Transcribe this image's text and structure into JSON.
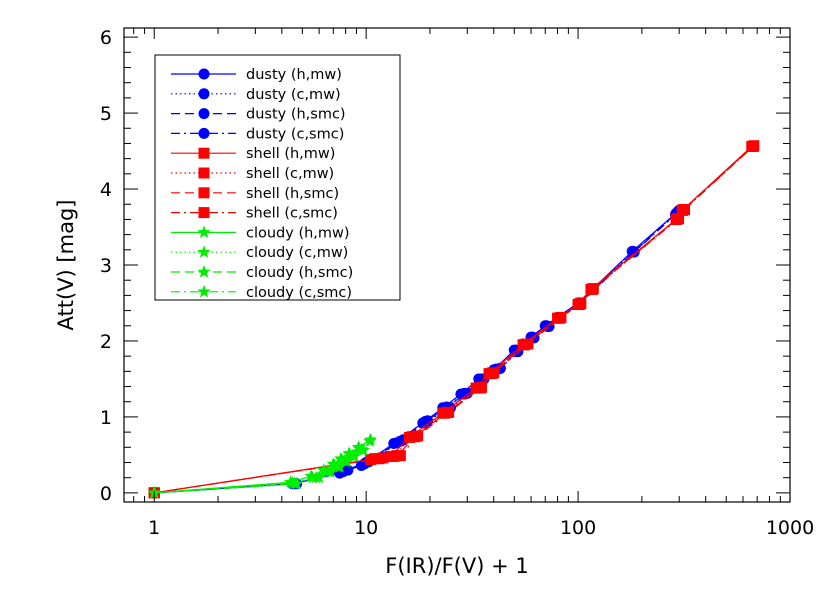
{
  "chart_data": {
    "type": "line",
    "title": "",
    "xlabel": "F(IR)/F(V) + 1",
    "ylabel": "Att(V) [mag]",
    "xscale": "log",
    "xlim": [
      0.72,
      1000
    ],
    "ylim": [
      -0.12,
      6.12
    ],
    "x_ticks": [
      1,
      10,
      100,
      1000
    ],
    "x_tick_labels": [
      "1",
      "10",
      "100",
      "1000"
    ],
    "y_ticks": [
      0,
      1,
      2,
      3,
      4,
      5,
      6
    ],
    "y_tick_labels": [
      "0",
      "1",
      "2",
      "3",
      "4",
      "5",
      "6"
    ],
    "grid": false,
    "legend_position": "top-left",
    "colors": {
      "dusty": "#0000ff",
      "shell": "#ff0000",
      "cloudy": "#00ee00"
    },
    "series": [
      {
        "name": "dusty (h,mw)",
        "group": "dusty",
        "marker": "circle",
        "dash": "solid",
        "x": [
          1,
          4.5,
          7.5,
          9.5,
          13.5,
          18.5,
          23,
          28,
          34,
          40,
          50,
          60,
          70,
          100,
          180,
          300
        ],
        "y": [
          0,
          0.12,
          0.26,
          0.36,
          0.65,
          0.92,
          1.12,
          1.3,
          1.5,
          1.62,
          1.88,
          2.05,
          2.2,
          2.5,
          3.18,
          3.72
        ]
      },
      {
        "name": "dusty (c,mw)",
        "group": "dusty",
        "marker": "circle",
        "dash": "dotted",
        "x": [
          1,
          4.5,
          7.8,
          9.8,
          14,
          19,
          24,
          29,
          35,
          41,
          51,
          61,
          71,
          101,
          182,
          290
        ],
        "y": [
          0,
          0.12,
          0.28,
          0.38,
          0.66,
          0.93,
          1.13,
          1.31,
          1.5,
          1.63,
          1.88,
          2.05,
          2.2,
          2.5,
          3.18,
          3.68
        ]
      },
      {
        "name": "dusty (h,smc)",
        "group": "dusty",
        "marker": "circle",
        "dash": "dashed",
        "x": [
          1,
          4.6,
          8,
          10,
          14.5,
          19,
          24,
          29,
          35,
          42,
          51,
          61,
          72,
          102,
          183,
          295
        ],
        "y": [
          0,
          0.12,
          0.3,
          0.4,
          0.68,
          0.94,
          1.12,
          1.3,
          1.49,
          1.63,
          1.86,
          2.04,
          2.19,
          2.5,
          3.17,
          3.7
        ]
      },
      {
        "name": "dusty (c,smc)",
        "group": "dusty",
        "marker": "circle",
        "dash": "dashdot",
        "x": [
          1,
          4.7,
          8.2,
          10.3,
          15,
          19.5,
          25,
          30,
          36,
          43,
          52,
          62,
          73,
          103,
          184,
          288
        ],
        "y": [
          0,
          0.12,
          0.3,
          0.41,
          0.7,
          0.95,
          1.12,
          1.31,
          1.5,
          1.64,
          1.86,
          2.04,
          2.19,
          2.5,
          3.17,
          3.66
        ]
      },
      {
        "name": "shell (h,mw)",
        "group": "shell",
        "marker": "square",
        "dash": "solid",
        "x": [
          1,
          10.5,
          13,
          16,
          23,
          33,
          38,
          55,
          80,
          100,
          115,
          290,
          310,
          660
        ],
        "y": [
          0,
          0.44,
          0.48,
          0.73,
          1.05,
          1.38,
          1.57,
          1.95,
          2.3,
          2.48,
          2.68,
          3.6,
          3.72,
          4.56
        ]
      },
      {
        "name": "shell (c,mw)",
        "group": "shell",
        "marker": "square",
        "dash": "dotted",
        "x": [
          1,
          11,
          13.5,
          16.5,
          23.5,
          34,
          39,
          56,
          81,
          101,
          116,
          292,
          312,
          665
        ],
        "y": [
          0,
          0.45,
          0.48,
          0.74,
          1.05,
          1.38,
          1.57,
          1.95,
          2.3,
          2.48,
          2.68,
          3.6,
          3.72,
          4.56
        ]
      },
      {
        "name": "shell (h,smc)",
        "group": "shell",
        "marker": "square",
        "dash": "dashed",
        "x": [
          1,
          11.5,
          14,
          17,
          24,
          34.5,
          39.5,
          57,
          82,
          102,
          117,
          295,
          315,
          670
        ],
        "y": [
          0,
          0.45,
          0.49,
          0.74,
          1.06,
          1.38,
          1.58,
          1.96,
          2.3,
          2.49,
          2.68,
          3.61,
          3.73,
          4.56
        ]
      },
      {
        "name": "shell (c,smc)",
        "group": "shell",
        "marker": "square",
        "dash": "dashdot",
        "x": [
          1,
          12,
          14.5,
          17.5,
          24.5,
          35,
          40,
          58,
          83,
          103,
          118,
          298,
          318,
          675
        ],
        "y": [
          0,
          0.46,
          0.49,
          0.75,
          1.06,
          1.39,
          1.58,
          1.96,
          2.31,
          2.49,
          2.69,
          3.61,
          3.73,
          4.57
        ]
      },
      {
        "name": "cloudy (h,mw)",
        "group": "cloudy",
        "marker": "star",
        "dash": "solid",
        "x": [
          1,
          4.4,
          5.5,
          6.3,
          7.0,
          7.6,
          8.3,
          9.2,
          10.5
        ],
        "y": [
          0,
          0.14,
          0.22,
          0.3,
          0.38,
          0.45,
          0.52,
          0.6,
          0.7
        ]
      },
      {
        "name": "cloudy (c,mw)",
        "group": "cloudy",
        "marker": "star",
        "dash": "dotted",
        "x": [
          1,
          4.5,
          5.6,
          6.4,
          7.1,
          7.7,
          8.4,
          9.3,
          10.4
        ],
        "y": [
          0,
          0.13,
          0.2,
          0.28,
          0.36,
          0.43,
          0.5,
          0.58,
          0.68
        ]
      },
      {
        "name": "cloudy (h,smc)",
        "group": "cloudy",
        "marker": "star",
        "dash": "dashed",
        "x": [
          1,
          4.6,
          5.8,
          6.6,
          7.3,
          7.9,
          8.6,
          9.5
        ],
        "y": [
          0,
          0.12,
          0.2,
          0.28,
          0.35,
          0.42,
          0.49,
          0.57
        ]
      },
      {
        "name": "cloudy (c,smc)",
        "group": "cloudy",
        "marker": "star",
        "dash": "dashdot",
        "x": [
          1,
          4.7,
          6.0,
          6.8,
          7.5,
          8.1,
          8.8,
          9.7
        ],
        "y": [
          0,
          0.12,
          0.2,
          0.27,
          0.34,
          0.41,
          0.48,
          0.56
        ]
      }
    ]
  }
}
